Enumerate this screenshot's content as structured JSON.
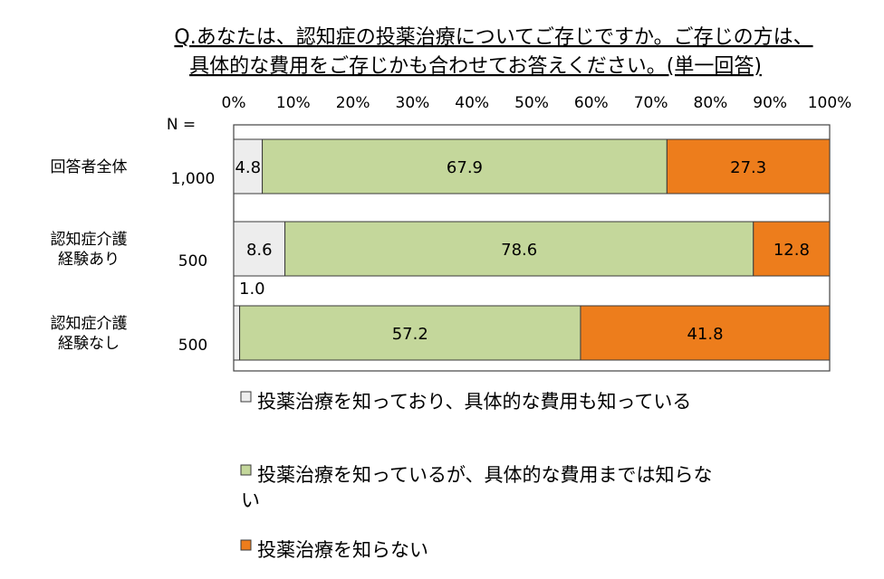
{
  "chart_data": {
    "type": "bar",
    "orientation": "horizontal",
    "stacked": true,
    "percent": true,
    "title_lines": [
      "Q.あなたは、認知症の投薬治療についてご存じですか。ご存じの方は、",
      "具体的な費用をご存じかも合わせてお答えください。(単一回答)"
    ],
    "x_ticks": [
      "0%",
      "10%",
      "20%",
      "30%",
      "40%",
      "50%",
      "60%",
      "70%",
      "80%",
      "90%",
      "100%"
    ],
    "xlim": [
      0,
      100
    ],
    "n_header": "N =",
    "legend_position": "bottom",
    "categories": [
      {
        "label_lines": [
          "回答者全体"
        ],
        "n": "1,000",
        "values": [
          4.8,
          67.9,
          27.3
        ],
        "labels": [
          "4.8",
          "67.9",
          "27.3"
        ]
      },
      {
        "label_lines": [
          "認知症介護",
          "経験あり"
        ],
        "n": "500",
        "values": [
          8.6,
          78.6,
          12.8
        ],
        "labels": [
          "8.6",
          "78.6",
          "12.8"
        ]
      },
      {
        "label_lines": [
          "認知症介護",
          "経験なし"
        ],
        "n": "500",
        "values": [
          1.0,
          57.2,
          41.8
        ],
        "labels": [
          "1.0",
          "57.2",
          "41.8"
        ]
      }
    ],
    "series": [
      {
        "name_lines": [
          "投薬治療を知っており、具体的な費用も知っている"
        ],
        "color": "#ededed"
      },
      {
        "name_lines": [
          "投薬治療を知っているが、具体的な費用までは知らな",
          "い"
        ],
        "color": "#c4d79b"
      },
      {
        "name_lines": [
          "投薬治療を知らない"
        ],
        "color": "#ed7d1c"
      }
    ]
  }
}
